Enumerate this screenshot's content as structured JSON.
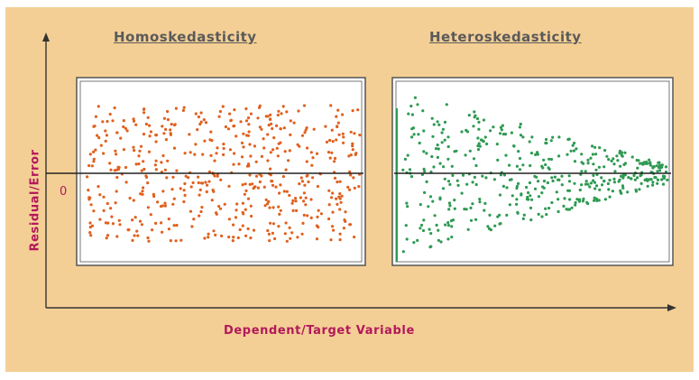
{
  "titles": {
    "left": "Homoskedasticity",
    "right": "Heteroskedasticity"
  },
  "axes": {
    "x_label": "Dependent/Target Variable",
    "y_label": "Residual/Error",
    "zero_label": "0"
  },
  "colors": {
    "background": "#f4cf95",
    "homoskedastic_points": "#e0601e",
    "heteroskedastic_points": "#2e9a52",
    "axis": "#333333",
    "label": "#b2185a"
  },
  "chart_data": [
    {
      "type": "scatter",
      "title": "Homoskedasticity",
      "pattern": "constant spread of residuals around zero",
      "x_range": [
        0,
        1
      ],
      "y_range": [
        -1,
        1
      ],
      "spread_start": 0.82,
      "spread_end": 0.82,
      "point_count": 520
    },
    {
      "type": "scatter",
      "title": "Heteroskedasticity",
      "pattern": "residual spread decreasing as target variable increases",
      "x_range": [
        0,
        1
      ],
      "y_range": [
        -1,
        1
      ],
      "spread_start": 0.98,
      "spread_end": 0.12,
      "point_count": 440
    }
  ]
}
